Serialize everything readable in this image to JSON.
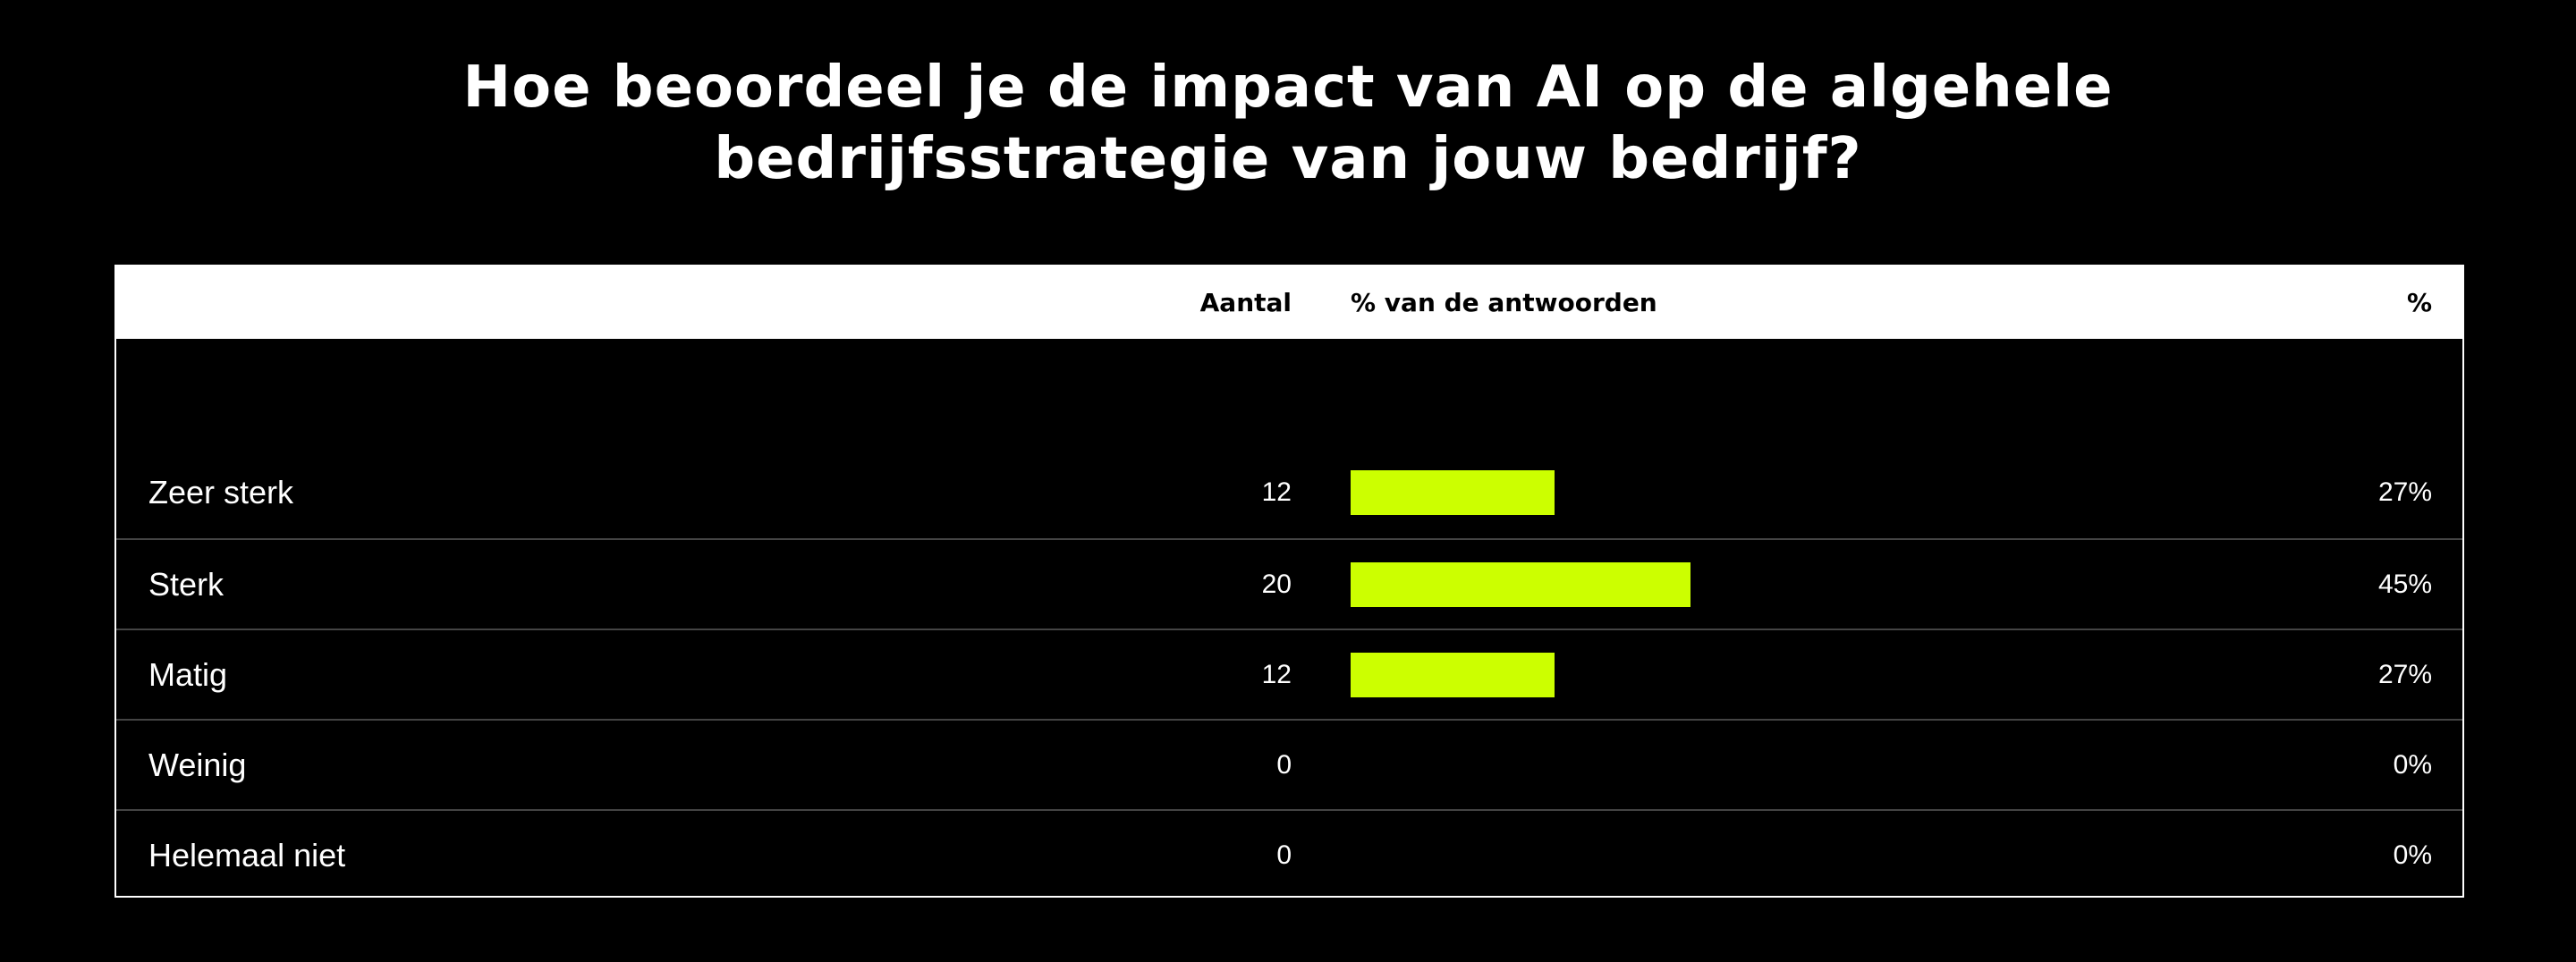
{
  "title": {
    "line1": "Hoe beoordeel je de impact van AI op de algehele",
    "line2": "bedrijfsstrategie van jouw bedrijf?"
  },
  "table": {
    "headers": {
      "label": "",
      "count": "Aantal",
      "bar": "% van de antwoorden",
      "pct": "%"
    }
  },
  "colors": {
    "background": "#000000",
    "bar": "#CCFF00",
    "header_bg": "#FFFFFF",
    "text": "#FFFFFF"
  },
  "chart_data": {
    "type": "bar",
    "orientation": "horizontal",
    "title": "Hoe beoordeel je de impact van AI op de algehele bedrijfsstrategie van jouw bedrijf?",
    "categories": [
      "Zeer sterk",
      "Sterk",
      "Matig",
      "Weinig",
      "Helemaal niet"
    ],
    "counts": [
      12,
      20,
      12,
      0,
      0
    ],
    "values": [
      27,
      45,
      27,
      0,
      0
    ],
    "value_labels": [
      "27%",
      "45%",
      "27%",
      "0%",
      "0%"
    ],
    "unit": "%",
    "xlim": [
      0,
      100
    ],
    "grid": false,
    "legend": "none"
  }
}
